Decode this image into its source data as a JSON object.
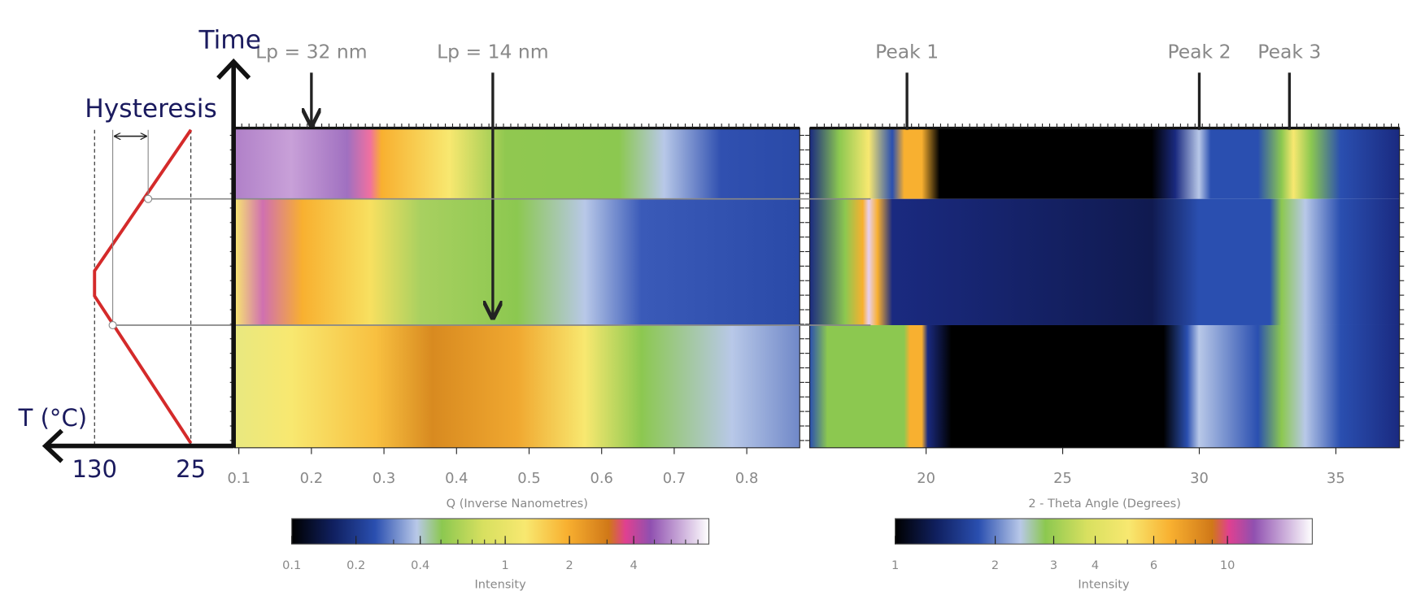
{
  "chart_data": [
    {
      "type": "heatmap",
      "xlabel": "Q (Inverse Nanometres)",
      "xlim": [
        0.094,
        0.873
      ],
      "xticks": [
        0.1,
        0.2,
        0.3,
        0.4,
        0.5,
        0.6,
        0.7,
        0.8
      ],
      "annotations": [
        {
          "text": "Lp = 32 nm",
          "x": 0.2
        },
        {
          "text": "Lp = 14 nm",
          "x": 0.45
        }
      ],
      "colorbar": {
        "label": "Intensity",
        "scale": "log",
        "lim": [
          0.1,
          9
        ],
        "ticks": [
          0.1,
          0.2,
          0.4,
          1,
          2,
          4
        ]
      }
    },
    {
      "type": "heatmap",
      "xlabel": "2 - Theta Angle (Degrees)",
      "xlim": [
        15.74,
        37.33
      ],
      "xticks": [
        20,
        25,
        30,
        35
      ],
      "annotations": [
        {
          "text": "Peak 1",
          "x": 19.3
        },
        {
          "text": "Peak 2",
          "x": 30
        },
        {
          "text": "Peak 3",
          "x": 33.3
        }
      ],
      "colorbar": {
        "label": "Intensity",
        "scale": "log",
        "lim": [
          1,
          18
        ],
        "ticks": [
          1,
          2,
          3,
          4,
          6,
          10
        ]
      }
    },
    {
      "type": "line",
      "ylabel": "Time",
      "xlabel": "T (°C)",
      "annotation": "Hysteresis",
      "xlim": [
        130,
        25
      ],
      "xticks": [
        130,
        25
      ],
      "ylim": [
        0,
        1
      ],
      "series": [
        {
          "color": "#d42a2a",
          "values": [
            25,
            130,
            130,
            25
          ],
          "time": [
            0,
            0.47,
            0.55,
            1
          ]
        }
      ]
    }
  ]
}
